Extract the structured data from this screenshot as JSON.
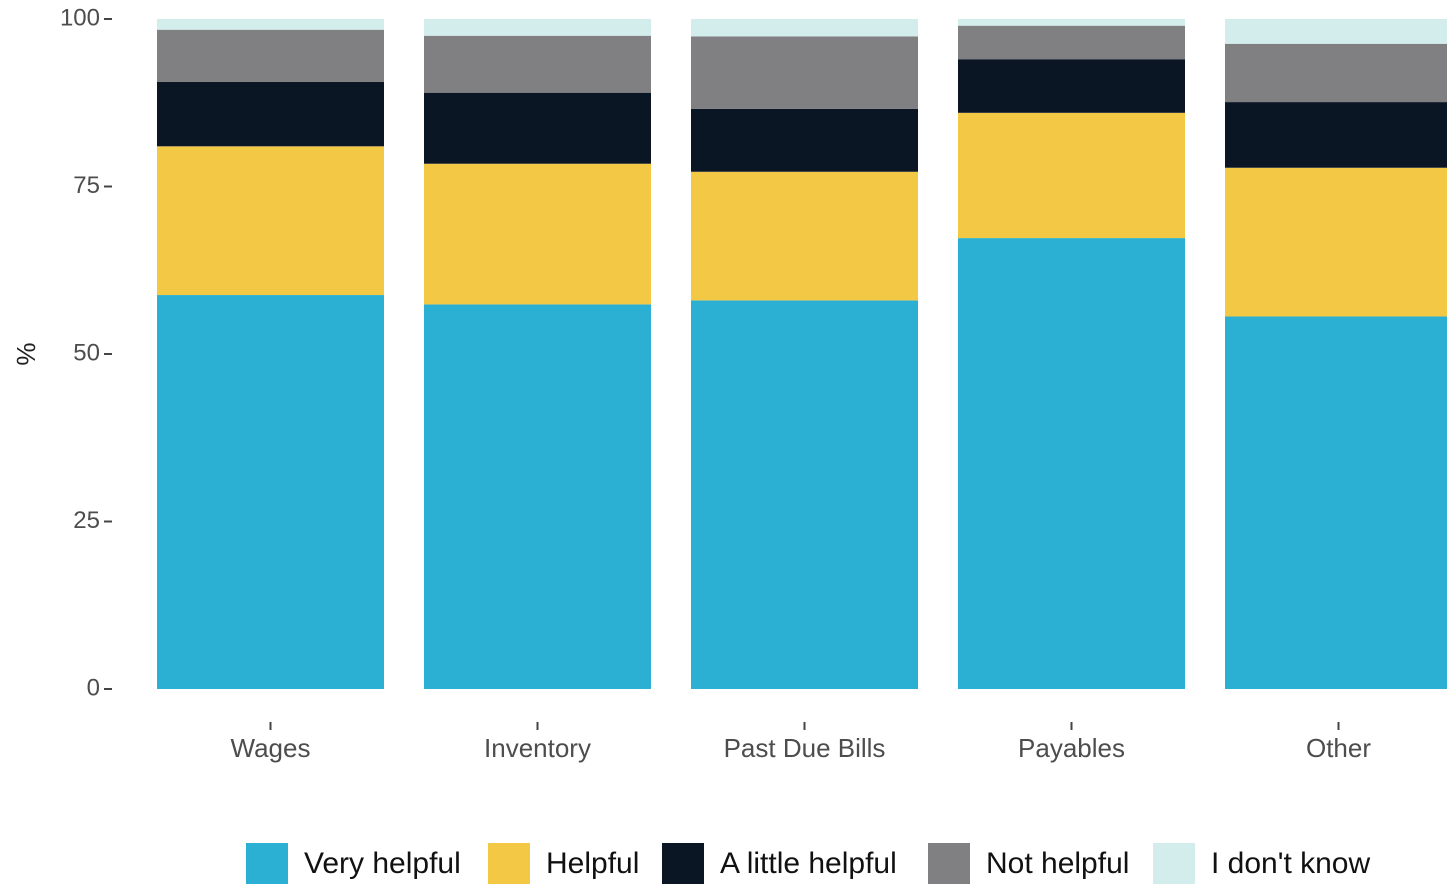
{
  "chart_data": {
    "type": "bar",
    "stacked": true,
    "title": "",
    "xlabel": "",
    "ylabel": "%",
    "ylim": [
      0,
      100
    ],
    "yticks": [
      0,
      25,
      50,
      75,
      100
    ],
    "ytick_labels": [
      "0",
      "25",
      "50",
      "75",
      "100"
    ],
    "grid": false,
    "legend_position": "bottom",
    "categories": [
      "Wages",
      "Inventory",
      "Past Due Bills",
      "Payables",
      "Other"
    ],
    "series": [
      {
        "name": "Very helpful",
        "color": "#2bb0d3",
        "values": [
          58.8,
          57.4,
          58.0,
          67.3,
          55.6
        ]
      },
      {
        "name": "Helpful",
        "color": "#f3c845",
        "values": [
          22.2,
          21.0,
          19.2,
          18.7,
          22.2
        ]
      },
      {
        "name": "A little helpful",
        "color": "#0b1625",
        "values": [
          9.6,
          10.6,
          9.4,
          8.0,
          9.8
        ]
      },
      {
        "name": "Not helpful",
        "color": "#808083",
        "values": [
          7.8,
          8.5,
          10.8,
          5.0,
          8.7
        ]
      },
      {
        "name": "I don't know",
        "color": "#d3ecec",
        "values": [
          1.6,
          2.5,
          2.6,
          1.0,
          3.7
        ]
      }
    ]
  }
}
